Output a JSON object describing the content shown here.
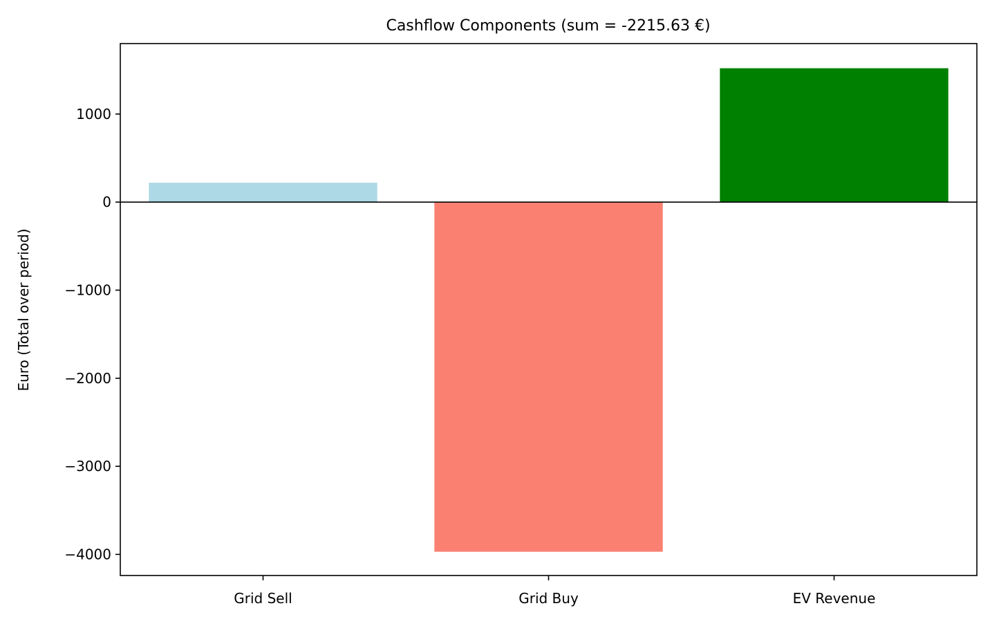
{
  "chart_data": {
    "type": "bar",
    "title": "Cashflow Components (sum = -2215.63 €)",
    "xlabel": "",
    "ylabel": "Euro (Total over period)",
    "categories": [
      "Grid Sell",
      "Grid Buy",
      "EV Revenue"
    ],
    "values": [
      220,
      -3970,
      1520
    ],
    "colors": [
      "#add8e6",
      "#fa8072",
      "#008000"
    ],
    "ylim": [
      -4240,
      1800
    ],
    "yticks": [
      -4000,
      -3000,
      -2000,
      -1000,
      0,
      1000
    ],
    "ytick_labels": [
      "−4000",
      "−3000",
      "−2000",
      "−1000",
      "0",
      "1000"
    ],
    "zero_line": true,
    "grid": false,
    "legend": "none"
  }
}
